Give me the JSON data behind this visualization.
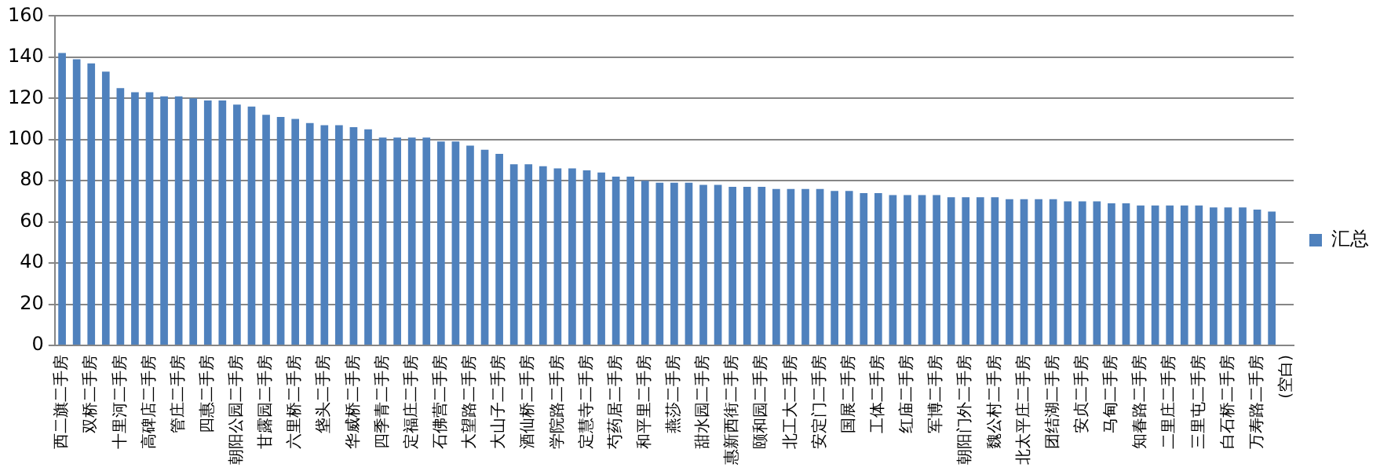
{
  "chart_data": {
    "type": "bar",
    "categories": [
      "西二旗二手房",
      null,
      "双桥二手房",
      null,
      "十里河二手房",
      null,
      "高碑店二手房",
      null,
      "管庄二手房",
      null,
      "四惠二手房",
      null,
      "朝阳公园二手房",
      null,
      "甘露园二手房",
      null,
      "六里桥二手房",
      null,
      "垡头二手房",
      null,
      "华威桥二手房",
      null,
      "四季青二手房",
      null,
      "定福庄二手房",
      null,
      "石佛营二手房",
      null,
      "大望路二手房",
      null,
      "大山子二手房",
      null,
      "酒仙桥二手房",
      null,
      "学院路二手房",
      null,
      "定慧寺二手房",
      null,
      "芍药居二手房",
      null,
      "和平里二手房",
      null,
      "燕莎二手房",
      null,
      "甜水园二手房",
      null,
      "惠新西街二手房",
      null,
      "颐和园二手房",
      null,
      "北工大二手房",
      null,
      "安定门二手房",
      null,
      "国展二手房",
      null,
      "工体二手房",
      null,
      "红庙二手房",
      null,
      "军博二手房",
      null,
      "朝阳门外二手房",
      null,
      "魏公村二手房",
      null,
      "北太平庄二手房",
      null,
      "团结湖二手房",
      null,
      "安贞二手房",
      null,
      "马甸二手房",
      null,
      "知春路二手房",
      null,
      "二里庄二手房",
      null,
      "三里屯二手房",
      null,
      "白石桥二手房",
      null,
      "万寿路二手房",
      null,
      "(空白)"
    ],
    "series": [
      {
        "name": "汇总",
        "color": "#4f81bd",
        "values": [
          142,
          139,
          137,
          133,
          125,
          123,
          123,
          121,
          121,
          120,
          119,
          119,
          117,
          116,
          112,
          111,
          110,
          108,
          107,
          107,
          106,
          105,
          101,
          101,
          101,
          101,
          99,
          99,
          97,
          95,
          93,
          88,
          88,
          87,
          86,
          86,
          85,
          84,
          82,
          82,
          80,
          79,
          79,
          79,
          78,
          78,
          77,
          77,
          77,
          76,
          76,
          76,
          76,
          75,
          75,
          74,
          74,
          73,
          73,
          73,
          73,
          72,
          72,
          72,
          72,
          71,
          71,
          71,
          71,
          70,
          70,
          70,
          69,
          69,
          68,
          68,
          68,
          68,
          68,
          67,
          67,
          67,
          66,
          65,
          null
        ]
      }
    ],
    "ylim": [
      0,
      160
    ],
    "yticks": [
      0,
      20,
      40,
      60,
      80,
      100,
      120,
      140,
      160
    ],
    "grid": "y",
    "legend": "right"
  }
}
